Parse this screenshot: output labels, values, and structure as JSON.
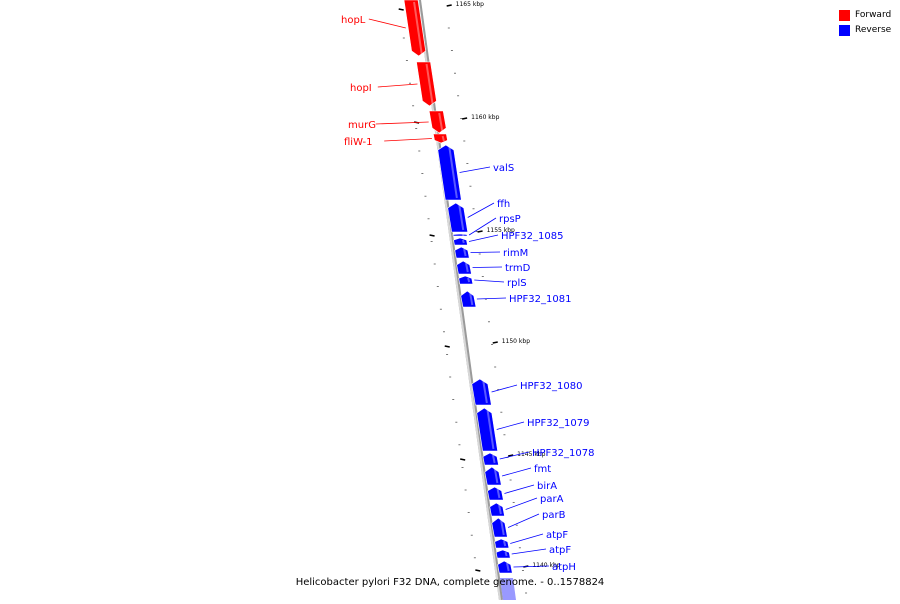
{
  "legend": {
    "forward": {
      "label": "Forward",
      "color": "#ff0000"
    },
    "reverse": {
      "label": "Reverse",
      "color": "#0000ff"
    }
  },
  "caption": "Helicobacter pylori F32 DNA, complete genome. - 0..1578824",
  "ticks": [
    {
      "label": "1165 kbp"
    },
    {
      "label": "1160 kbp"
    },
    {
      "label": "1155 kbp"
    },
    {
      "label": "1150 kbp"
    },
    {
      "label": "1145 kbp"
    },
    {
      "label": "1140 kbp"
    }
  ],
  "genes": [
    {
      "name": "hopL",
      "strand": "forward"
    },
    {
      "name": "hopI",
      "strand": "forward"
    },
    {
      "name": "murG",
      "strand": "forward"
    },
    {
      "name": "fliW-1",
      "strand": "forward"
    },
    {
      "name": "valS",
      "strand": "reverse"
    },
    {
      "name": "ffh",
      "strand": "reverse"
    },
    {
      "name": "rpsP",
      "strand": "reverse"
    },
    {
      "name": "HPF32_1085",
      "strand": "reverse"
    },
    {
      "name": "rimM",
      "strand": "reverse"
    },
    {
      "name": "trmD",
      "strand": "reverse"
    },
    {
      "name": "rplS",
      "strand": "reverse"
    },
    {
      "name": "HPF32_1081",
      "strand": "reverse"
    },
    {
      "name": "HPF32_1080",
      "strand": "reverse"
    },
    {
      "name": "HPF32_1079",
      "strand": "reverse"
    },
    {
      "name": "HPF32_1078",
      "strand": "reverse"
    },
    {
      "name": "fmt",
      "strand": "reverse"
    },
    {
      "name": "birA",
      "strand": "reverse"
    },
    {
      "name": "parA",
      "strand": "reverse"
    },
    {
      "name": "parB",
      "strand": "reverse"
    },
    {
      "name": "atpF",
      "strand": "reverse"
    },
    {
      "name": "atpF",
      "strand": "reverse"
    },
    {
      "name": "atpH",
      "strand": "reverse"
    }
  ]
}
